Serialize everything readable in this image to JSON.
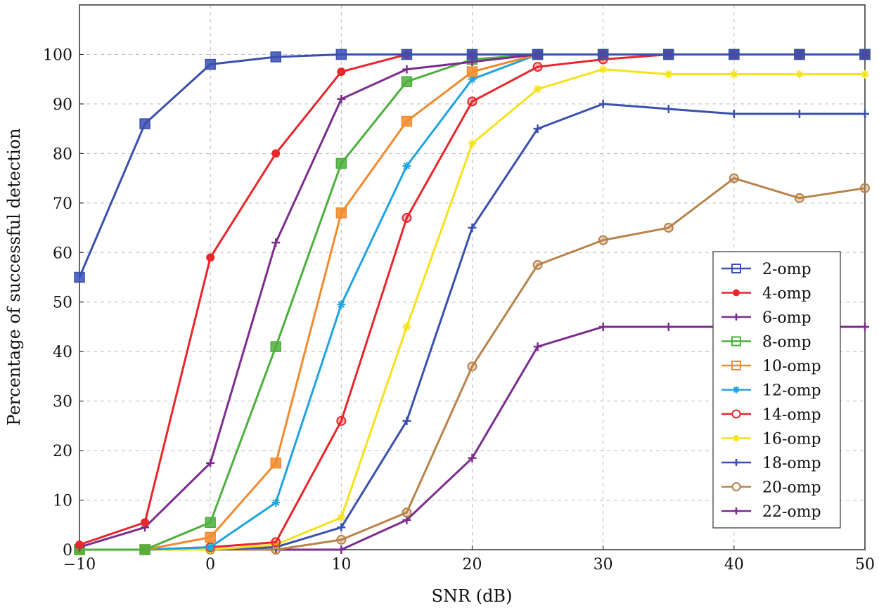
{
  "chart_data": {
    "type": "line",
    "title": "",
    "xlabel": "SNR (dB)",
    "ylabel": "Percentage of successful detection",
    "xlim": [
      -10,
      50
    ],
    "ylim": [
      0,
      110
    ],
    "xticks": [
      -10,
      0,
      10,
      20,
      30,
      40,
      50
    ],
    "yticks": [
      0,
      10,
      20,
      30,
      40,
      50,
      60,
      70,
      80,
      90,
      100
    ],
    "grid": true,
    "legend_position": "right",
    "x": [
      -10,
      -5,
      0,
      5,
      10,
      15,
      20,
      25,
      30,
      35,
      40,
      45,
      50
    ],
    "series": [
      {
        "name": "2-omp",
        "color": "#3a4fb0",
        "marker": "square",
        "values": [
          55,
          86,
          98,
          99.5,
          100,
          100,
          100,
          100,
          100,
          100,
          100,
          100,
          100
        ]
      },
      {
        "name": "4-omp",
        "color": "#e8262b",
        "marker": "dot",
        "values": [
          1,
          5.5,
          59,
          80,
          96.5,
          100,
          100,
          100,
          100,
          100,
          100,
          100,
          100
        ]
      },
      {
        "name": "6-omp",
        "color": "#7b2d8e",
        "marker": "plus",
        "values": [
          0.5,
          4.5,
          17.5,
          62,
          91,
          97,
          98.5,
          100,
          100,
          100,
          100,
          100,
          100
        ]
      },
      {
        "name": "8-omp",
        "color": "#4caf3c",
        "marker": "square",
        "values": [
          0,
          0,
          5.5,
          41,
          78,
          94.5,
          99,
          100,
          100,
          100,
          100,
          100,
          100
        ]
      },
      {
        "name": "10-omp",
        "color": "#f28a2c",
        "marker": "square",
        "values": [
          0,
          0,
          2.5,
          17.5,
          68,
          86.5,
          96.5,
          100,
          100,
          100,
          100,
          100,
          100
        ]
      },
      {
        "name": "12-omp",
        "color": "#1ea3e0",
        "marker": "star",
        "values": [
          0,
          0,
          0.5,
          9.5,
          49.5,
          77.5,
          95,
          100,
          100,
          100,
          100,
          100,
          100
        ]
      },
      {
        "name": "14-omp",
        "color": "#e8262b",
        "marker": "circle-open",
        "values": [
          0,
          0,
          0.5,
          1.5,
          26,
          67,
          90.5,
          97.5,
          99,
          100,
          100,
          100,
          100
        ]
      },
      {
        "name": "16-omp",
        "color": "#f4e21a",
        "marker": "star",
        "values": [
          0,
          0,
          0,
          1,
          6.5,
          45,
          82,
          93,
          97,
          96,
          96,
          96,
          96
        ]
      },
      {
        "name": "18-omp",
        "color": "#3a4fb0",
        "marker": "plus",
        "values": [
          0,
          0,
          0,
          0.5,
          4.5,
          26,
          65,
          85,
          90,
          89,
          88,
          88,
          88
        ]
      },
      {
        "name": "20-omp",
        "color": "#b8834a",
        "marker": "circle-open",
        "values": [
          0,
          0,
          0,
          0,
          2,
          7.5,
          37,
          57.5,
          62.5,
          65,
          75,
          71,
          73
        ]
      },
      {
        "name": "22-omp",
        "color": "#7b2d8e",
        "marker": "plus",
        "values": [
          0,
          0,
          0,
          0,
          0,
          6,
          18.5,
          41,
          45,
          45,
          45,
          45,
          45
        ]
      }
    ]
  }
}
